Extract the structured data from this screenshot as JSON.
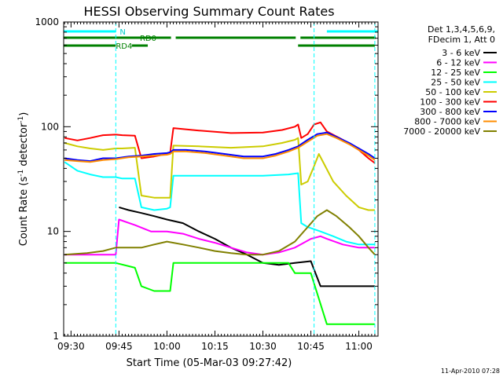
{
  "chart_data": {
    "type": "line",
    "title": "HESSI Observing Summary Count Rates",
    "xlabel": "Start Time (05-Mar-03 09:27:42)",
    "ylabel": "Count Rate (s⁻¹ detector⁻¹)",
    "ylabel_main": "Count Rate (s",
    "ylabel_sup1": "-1",
    "ylabel_mid": " detector",
    "ylabel_sup2": "-1",
    "ylabel_end": ")",
    "y_scale": "log",
    "ylim": [
      1,
      1000
    ],
    "xlim": [
      "09:27:42",
      "11:06:00"
    ],
    "x_ticks": [
      "09:30",
      "09:45",
      "10:00",
      "10:15",
      "10:30",
      "10:45",
      "11:00"
    ],
    "y_ticks": [
      "1",
      "10",
      "100",
      "1000"
    ],
    "legend_placement": "right",
    "legend_header": [
      "Det 1,3,4,5,6,9,",
      "FDecim 1, Att 0"
    ],
    "timestamp": "11-Apr-2010 07:28",
    "flag_labels": {
      "N": "N",
      "RD0": "RD0",
      "RD4": "RD4"
    },
    "flags": {
      "N": [
        [
          "09:27:42",
          "09:44:00"
        ],
        [
          "10:50:00",
          "11:06:00"
        ]
      ],
      "RD0": [
        [
          "09:27:42",
          "10:02:00"
        ],
        [
          "10:02:00",
          "10:41:00"
        ],
        [
          "10:41:00",
          "11:06:00"
        ]
      ],
      "RD4": [
        [
          "09:27:42",
          "09:44:00"
        ],
        [
          "09:49:00",
          "09:54:00"
        ],
        [
          "10:41:00",
          "11:05:00"
        ]
      ]
    },
    "cyan_markers": [
      "09:44:00",
      "10:46:00",
      "11:05:00"
    ],
    "series": [
      {
        "name": "3 - 6 keV",
        "color": "#000000",
        "points": [
          [
            "09:45:00",
            17
          ],
          [
            "09:48:00",
            16
          ],
          [
            "09:52:00",
            15
          ],
          [
            "09:56:00",
            14
          ],
          [
            "10:00:00",
            13
          ],
          [
            "10:05:00",
            12
          ],
          [
            "10:10:00",
            10
          ],
          [
            "10:15:00",
            8.5
          ],
          [
            "10:20:00",
            7
          ],
          [
            "10:25:00",
            6
          ],
          [
            "10:30:00",
            5
          ],
          [
            "10:35:00",
            4.8
          ],
          [
            "10:40:00",
            5
          ],
          [
            "10:45:00",
            5.2
          ],
          [
            "10:48:00",
            3
          ],
          [
            "11:05:00",
            3
          ]
        ]
      },
      {
        "name": "6 - 12 keV",
        "color": "#ff00ff",
        "points": [
          [
            "09:28:00",
            6
          ],
          [
            "09:35:00",
            6
          ],
          [
            "09:44:00",
            6
          ],
          [
            "09:45:00",
            13
          ],
          [
            "09:50:00",
            11.5
          ],
          [
            "09:55:00",
            10
          ],
          [
            "10:00:00",
            10
          ],
          [
            "10:05:00",
            9.5
          ],
          [
            "10:10:00",
            8.5
          ],
          [
            "10:15:00",
            7.8
          ],
          [
            "10:20:00",
            7
          ],
          [
            "10:25:00",
            6.3
          ],
          [
            "10:30:00",
            6
          ],
          [
            "10:35:00",
            6.3
          ],
          [
            "10:40:00",
            7
          ],
          [
            "10:45:00",
            8.5
          ],
          [
            "10:48:00",
            9
          ],
          [
            "10:50:00",
            8.5
          ],
          [
            "10:55:00",
            7.5
          ],
          [
            "11:00:00",
            7
          ],
          [
            "11:05:00",
            7
          ]
        ]
      },
      {
        "name": "12 - 25 keV",
        "color": "#00ff00",
        "points": [
          [
            "09:28:00",
            5
          ],
          [
            "09:35:00",
            5
          ],
          [
            "09:44:00",
            5
          ],
          [
            "09:50:00",
            4.5
          ],
          [
            "09:52:00",
            3
          ],
          [
            "09:56:00",
            2.7
          ],
          [
            "10:01:00",
            2.7
          ],
          [
            "10:02:00",
            5
          ],
          [
            "10:10:00",
            5
          ],
          [
            "10:20:00",
            5
          ],
          [
            "10:30:00",
            5
          ],
          [
            "10:38:00",
            5
          ],
          [
            "10:40:00",
            4
          ],
          [
            "10:45:00",
            4
          ],
          [
            "10:50:00",
            1.3
          ],
          [
            "11:05:00",
            1.3
          ]
        ]
      },
      {
        "name": "25 - 50 keV",
        "color": "#00ffff",
        "points": [
          [
            "09:28:00",
            46
          ],
          [
            "09:32:00",
            38
          ],
          [
            "09:36:00",
            35
          ],
          [
            "09:40:00",
            33
          ],
          [
            "09:44:00",
            33
          ],
          [
            "09:46:00",
            32
          ],
          [
            "09:50:00",
            32
          ],
          [
            "09:52:00",
            17
          ],
          [
            "09:56:00",
            16
          ],
          [
            "10:00:00",
            16.5
          ],
          [
            "10:01:00",
            17
          ],
          [
            "10:02:00",
            34
          ],
          [
            "10:10:00",
            34
          ],
          [
            "10:20:00",
            34
          ],
          [
            "10:30:00",
            34
          ],
          [
            "10:38:00",
            35
          ],
          [
            "10:41:00",
            36
          ],
          [
            "10:42:00",
            12
          ],
          [
            "10:44:00",
            11
          ],
          [
            "10:46:00",
            10.5
          ],
          [
            "10:48:00",
            10
          ],
          [
            "10:52:00",
            9
          ],
          [
            "10:56:00",
            8
          ],
          [
            "11:00:00",
            7.5
          ],
          [
            "11:05:00",
            7.5
          ]
        ]
      },
      {
        "name": "50 - 100 keV",
        "color": "#cccc00",
        "points": [
          [
            "09:28:00",
            70
          ],
          [
            "09:32:00",
            65
          ],
          [
            "09:36:00",
            62
          ],
          [
            "09:40:00",
            60
          ],
          [
            "09:44:00",
            62
          ],
          [
            "09:46:00",
            62
          ],
          [
            "09:50:00",
            63
          ],
          [
            "09:52:00",
            22
          ],
          [
            "09:56:00",
            21
          ],
          [
            "10:00:00",
            21
          ],
          [
            "10:01:00",
            21
          ],
          [
            "10:02:00",
            66
          ],
          [
            "10:10:00",
            65
          ],
          [
            "10:20:00",
            63
          ],
          [
            "10:30:00",
            65
          ],
          [
            "10:36:00",
            70
          ],
          [
            "10:40:00",
            75
          ],
          [
            "10:41:00",
            78
          ],
          [
            "10:42:00",
            28
          ],
          [
            "10:44:00",
            30
          ],
          [
            "10:46:00",
            42
          ],
          [
            "10:47:30",
            55
          ],
          [
            "10:49:00",
            45
          ],
          [
            "10:52:00",
            30
          ],
          [
            "10:56:00",
            22
          ],
          [
            "11:00:00",
            17
          ],
          [
            "11:03:00",
            16
          ],
          [
            "11:05:00",
            16
          ]
        ]
      },
      {
        "name": "100 - 300 keV",
        "color": "#ff0000",
        "points": [
          [
            "09:28:00",
            78
          ],
          [
            "09:32:00",
            74
          ],
          [
            "09:36:00",
            78
          ],
          [
            "09:40:00",
            83
          ],
          [
            "09:44:00",
            84
          ],
          [
            "09:46:00",
            83
          ],
          [
            "09:50:00",
            82
          ],
          [
            "09:52:00",
            50
          ],
          [
            "09:56:00",
            52
          ],
          [
            "10:00:00",
            55
          ],
          [
            "10:01:00",
            56
          ],
          [
            "10:02:00",
            97
          ],
          [
            "10:10:00",
            92
          ],
          [
            "10:20:00",
            87
          ],
          [
            "10:30:00",
            88
          ],
          [
            "10:36:00",
            93
          ],
          [
            "10:40:00",
            100
          ],
          [
            "10:41:00",
            105
          ],
          [
            "10:42:00",
            78
          ],
          [
            "10:44:00",
            85
          ],
          [
            "10:46:00",
            105
          ],
          [
            "10:48:00",
            110
          ],
          [
            "10:50:00",
            90
          ],
          [
            "10:55:00",
            75
          ],
          [
            "11:00:00",
            60
          ],
          [
            "11:03:00",
            50
          ],
          [
            "11:05:00",
            45
          ]
        ]
      },
      {
        "name": "300 - 800 keV",
        "color": "#0000ff",
        "points": [
          [
            "09:28:00",
            50
          ],
          [
            "09:32:00",
            48
          ],
          [
            "09:36:00",
            47
          ],
          [
            "09:40:00",
            50
          ],
          [
            "09:44:00",
            50
          ],
          [
            "09:48:00",
            52
          ],
          [
            "09:52:00",
            53
          ],
          [
            "09:56:00",
            55
          ],
          [
            "10:00:00",
            56
          ],
          [
            "10:01:00",
            57
          ],
          [
            "10:02:00",
            60
          ],
          [
            "10:06:00",
            60
          ],
          [
            "10:12:00",
            58
          ],
          [
            "10:18:00",
            55
          ],
          [
            "10:24:00",
            52
          ],
          [
            "10:30:00",
            52
          ],
          [
            "10:34:00",
            55
          ],
          [
            "10:38:00",
            60
          ],
          [
            "10:41:00",
            65
          ],
          [
            "10:44:00",
            75
          ],
          [
            "10:47:00",
            85
          ],
          [
            "10:50:00",
            88
          ],
          [
            "10:53:00",
            80
          ],
          [
            "10:57:00",
            70
          ],
          [
            "11:00:00",
            62
          ],
          [
            "11:03:00",
            55
          ],
          [
            "11:05:00",
            50
          ]
        ]
      },
      {
        "name": "800 - 7000 keV",
        "color": "#ff8c00",
        "points": [
          [
            "09:28:00",
            48
          ],
          [
            "09:32:00",
            47
          ],
          [
            "09:36:00",
            46
          ],
          [
            "09:40:00",
            48
          ],
          [
            "09:44:00",
            49
          ],
          [
            "09:48:00",
            51
          ],
          [
            "09:52:00",
            52
          ],
          [
            "09:56:00",
            53
          ],
          [
            "10:00:00",
            54
          ],
          [
            "10:01:00",
            55
          ],
          [
            "10:02:00",
            58
          ],
          [
            "10:06:00",
            58
          ],
          [
            "10:12:00",
            56
          ],
          [
            "10:18:00",
            53
          ],
          [
            "10:24:00",
            50
          ],
          [
            "10:30:00",
            50
          ],
          [
            "10:34:00",
            53
          ],
          [
            "10:38:00",
            58
          ],
          [
            "10:41:00",
            63
          ],
          [
            "10:44:00",
            72
          ],
          [
            "10:47:00",
            82
          ],
          [
            "10:50:00",
            85
          ],
          [
            "10:53:00",
            78
          ],
          [
            "10:57:00",
            68
          ],
          [
            "11:00:00",
            60
          ],
          [
            "11:03:00",
            53
          ],
          [
            "11:05:00",
            48
          ]
        ]
      },
      {
        "name": "7000 - 20000 keV",
        "color": "#808000",
        "points": [
          [
            "09:28:00",
            6
          ],
          [
            "09:35:00",
            6.2
          ],
          [
            "09:40:00",
            6.5
          ],
          [
            "09:44:00",
            7
          ],
          [
            "09:48:00",
            7
          ],
          [
            "09:52:00",
            7
          ],
          [
            "09:56:00",
            7.5
          ],
          [
            "10:00:00",
            8
          ],
          [
            "10:05:00",
            7.5
          ],
          [
            "10:10:00",
            7
          ],
          [
            "10:15:00",
            6.5
          ],
          [
            "10:20:00",
            6.2
          ],
          [
            "10:25:00",
            6
          ],
          [
            "10:30:00",
            6
          ],
          [
            "10:35:00",
            6.5
          ],
          [
            "10:40:00",
            8
          ],
          [
            "10:44:00",
            11
          ],
          [
            "10:47:00",
            14
          ],
          [
            "10:50:00",
            16
          ],
          [
            "10:53:00",
            14
          ],
          [
            "10:57:00",
            11
          ],
          [
            "11:00:00",
            9
          ],
          [
            "11:03:00",
            7
          ],
          [
            "11:05:00",
            6
          ]
        ]
      }
    ]
  }
}
